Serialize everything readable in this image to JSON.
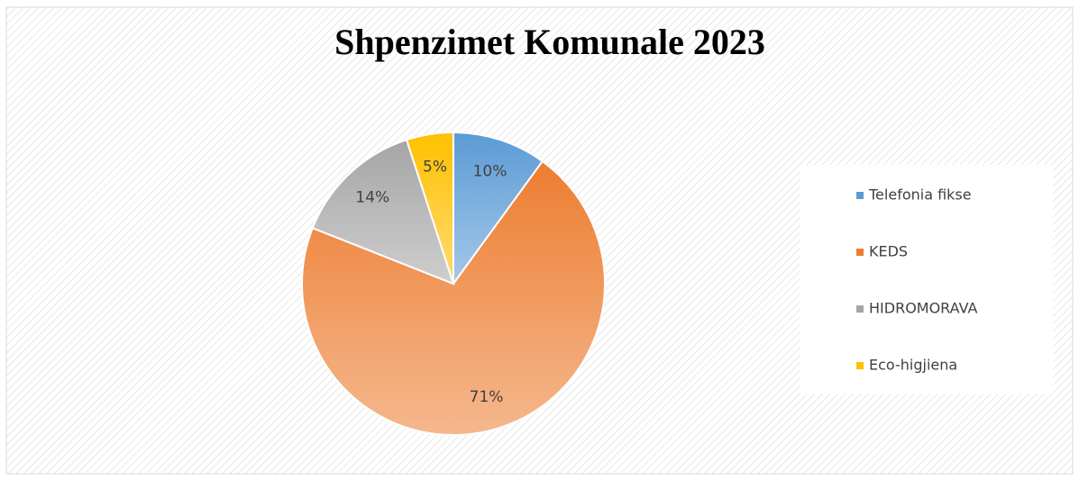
{
  "chart_data": {
    "type": "pie",
    "title": "Shpenzimet Komunale 2023",
    "categories": [
      "Telefonia fikse",
      "KEDS",
      "HIDROMORAVA",
      "Eco-higjiena"
    ],
    "values": [
      10,
      71,
      14,
      5
    ],
    "value_labels": [
      "10%",
      "71%",
      "14%",
      "5%"
    ],
    "colors": [
      "#5b9bd5",
      "#ed7d31",
      "#a5a5a5",
      "#ffc000"
    ],
    "legend": "right"
  }
}
